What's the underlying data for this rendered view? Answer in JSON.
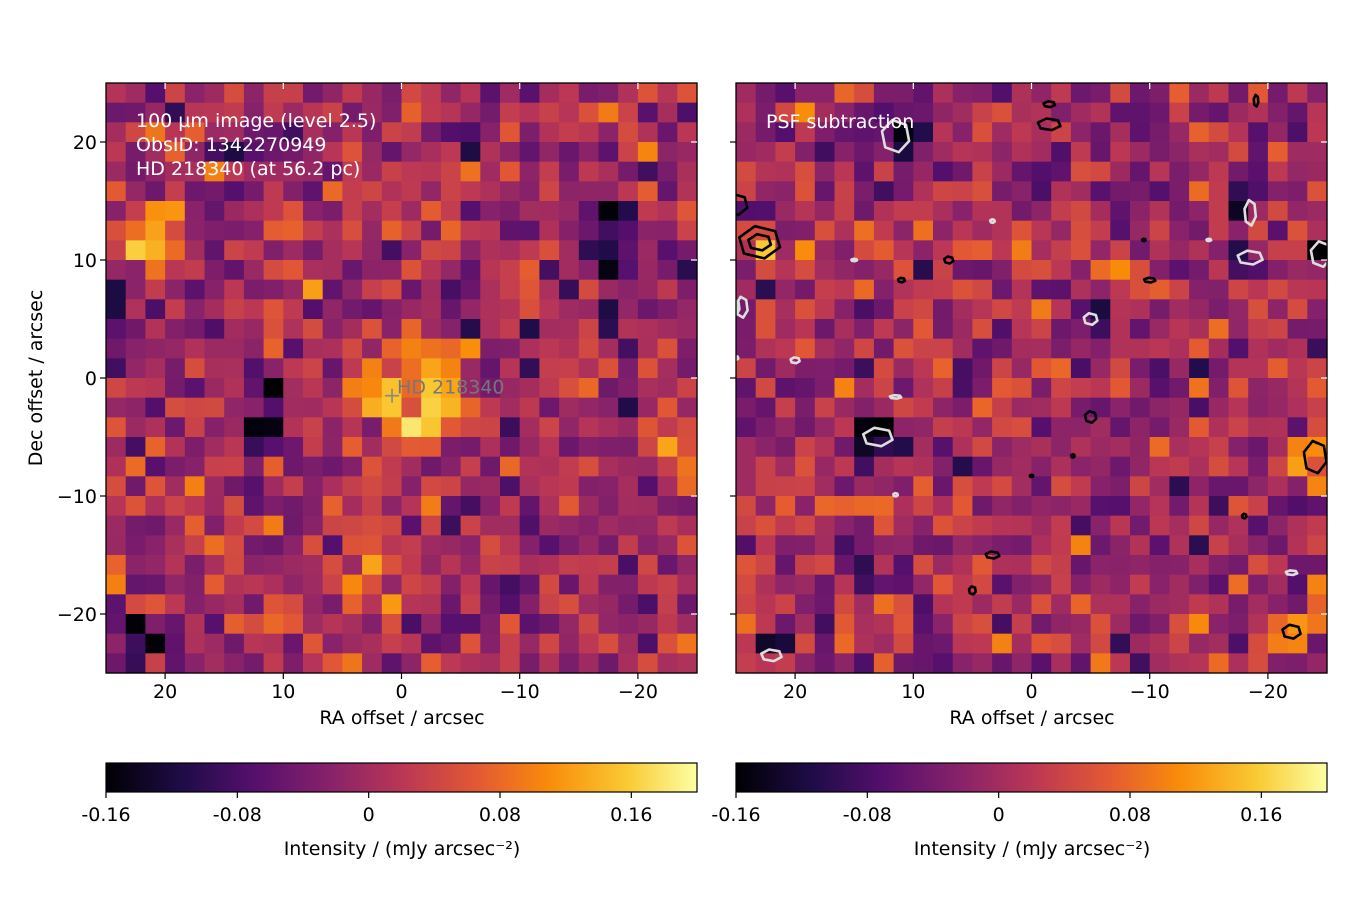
{
  "chart_data": [
    {
      "type": "heatmap",
      "title": "",
      "annotations": [
        "100 µm image (level 2.5)",
        "ObsID: 1342270949",
        "HD 218340 (at 56.2 pc)"
      ],
      "marker": {
        "label": "HD 218340",
        "x": 0.8,
        "y": -1.5,
        "symbol": "+"
      },
      "xlabel": "RA offset / arcsec",
      "ylabel": "Dec offset / arcsec",
      "xlim": [
        25,
        -25
      ],
      "ylim": [
        -25,
        25
      ],
      "xticks": [
        20,
        10,
        0,
        -10,
        -20
      ],
      "xtick_labels": [
        "20",
        "10",
        "0",
        "−10",
        "−20"
      ],
      "yticks": [
        20,
        10,
        0,
        -10,
        -20
      ],
      "ytick_labels": [
        "20",
        "10",
        "0",
        "−10",
        "−20"
      ],
      "colormap": "inferno",
      "grid_size": [
        30,
        30
      ],
      "colorbar": {
        "label": "Intensity / (mJy arcsec⁻²)",
        "range": [
          -0.16,
          0.2
        ],
        "ticks": [
          -0.16,
          -0.08,
          0,
          0.08,
          0.16
        ],
        "tick_labels": [
          "-0.16",
          "-0.08",
          "0",
          "0.08",
          "0.16"
        ]
      },
      "features": [
        {
          "x": 0,
          "y": 0,
          "sigma": 3.2,
          "amp": 0.13
        },
        {
          "x": -3,
          "y": -3,
          "sigma": 2.5,
          "amp": 0.07
        },
        {
          "x": 21,
          "y": 11.5,
          "sigma": 1.8,
          "amp": 0.15
        },
        {
          "x": -23,
          "y": -6,
          "sigma": 1.5,
          "amp": 0.11
        },
        {
          "x": 3,
          "y": -17,
          "sigma": 3,
          "amp": 0.06
        },
        {
          "x": 12,
          "y": -5,
          "sigma": 1.2,
          "amp": -0.16
        },
        {
          "x": 11,
          "y": 20,
          "sigma": 1.2,
          "amp": -0.14
        },
        {
          "x": -18,
          "y": 14,
          "sigma": 1.2,
          "amp": -0.12
        },
        {
          "x": -17.5,
          "y": 10,
          "sigma": 1.2,
          "amp": -0.16
        },
        {
          "x": -24.5,
          "y": 10,
          "sigma": 1.0,
          "amp": -0.13
        },
        {
          "x": 24,
          "y": 6,
          "sigma": 1.4,
          "amp": -0.11
        },
        {
          "x": 22,
          "y": -22,
          "sigma": 1.3,
          "amp": -0.15
        },
        {
          "x": 11,
          "y": -1.5,
          "sigma": 1.2,
          "amp": -0.12
        },
        {
          "x": -5,
          "y": 5,
          "sigma": 1.0,
          "amp": -0.12
        }
      ]
    },
    {
      "type": "heatmap",
      "title": "",
      "annotations": [
        "PSF subtraction"
      ],
      "xlabel": "RA offset / arcsec",
      "ylabel": "",
      "xlim": [
        25,
        -25
      ],
      "ylim": [
        -25,
        25
      ],
      "xticks": [
        20,
        10,
        0,
        -10,
        -20
      ],
      "xtick_labels": [
        "20",
        "10",
        "0",
        "−10",
        "−20"
      ],
      "yticks": [
        20,
        10,
        0,
        -10,
        -20
      ],
      "colormap": "inferno",
      "grid_size": [
        30,
        30
      ],
      "colorbar": {
        "label": "Intensity / (mJy arcsec⁻²)",
        "range": [
          -0.16,
          0.2
        ],
        "ticks": [
          -0.16,
          -0.08,
          0,
          0.08,
          0.16
        ],
        "tick_labels": [
          "-0.16",
          "-0.08",
          "0",
          "0.08",
          "0.16"
        ]
      },
      "features": [
        {
          "x": 23,
          "y": 11.5,
          "sigma": 1.3,
          "amp": 0.14
        },
        {
          "x": -24,
          "y": -6.5,
          "sigma": 1.3,
          "amp": 0.15
        },
        {
          "x": 11,
          "y": 20,
          "sigma": 1.2,
          "amp": -0.16
        },
        {
          "x": 13,
          "y": -5,
          "sigma": 1.2,
          "amp": -0.15
        },
        {
          "x": -18,
          "y": 15,
          "sigma": 1.1,
          "amp": -0.14
        },
        {
          "x": -18,
          "y": 10,
          "sigma": 1.1,
          "amp": -0.14
        },
        {
          "x": -24,
          "y": 10.5,
          "sigma": 1.0,
          "amp": -0.13
        },
        {
          "x": 22,
          "y": -23,
          "sigma": 1.0,
          "amp": -0.13
        },
        {
          "x": -22,
          "y": -16.5,
          "sigma": 1.0,
          "amp": -0.12
        },
        {
          "x": 1.5,
          "y": 21.5,
          "sigma": 1.0,
          "amp": 0.1
        },
        {
          "x": -22,
          "y": -21.5,
          "sigma": 1.0,
          "amp": 0.11
        },
        {
          "x": -5,
          "y": 5,
          "sigma": 1.0,
          "amp": -0.12
        }
      ],
      "contours": {
        "positive_color": "#000000",
        "negative_color": "#dddddd",
        "positive": [
          {
            "x": 23,
            "y": 11.5,
            "rx": 1.8,
            "ry": 1.4
          },
          {
            "x": 23,
            "y": 11.5,
            "rx": 1.0,
            "ry": 0.7
          },
          {
            "x": 25,
            "y": 14.7,
            "rx": 1.0,
            "ry": 0.9
          },
          {
            "x": -24,
            "y": -6.7,
            "rx": 1.0,
            "ry": 1.4
          },
          {
            "x": -1.5,
            "y": 21.5,
            "rx": 1.0,
            "ry": 0.5
          },
          {
            "x": -1.5,
            "y": 23.2,
            "rx": 0.5,
            "ry": 0.25
          },
          {
            "x": -19,
            "y": 23.5,
            "rx": 0.2,
            "ry": 0.5
          },
          {
            "x": 7,
            "y": 10,
            "rx": 0.4,
            "ry": 0.3
          },
          {
            "x": 11,
            "y": 8.3,
            "rx": 0.3,
            "ry": 0.2
          },
          {
            "x": -10,
            "y": 8.3,
            "rx": 0.5,
            "ry": 0.2
          },
          {
            "x": -9.5,
            "y": 11.7,
            "rx": 0.15,
            "ry": 0.1
          },
          {
            "x": -5,
            "y": -3.3,
            "rx": 0.5,
            "ry": 0.5
          },
          {
            "x": -3.5,
            "y": -6.6,
            "rx": 0.15,
            "ry": 0.15
          },
          {
            "x": 0,
            "y": -8.3,
            "rx": 0.15,
            "ry": 0.1
          },
          {
            "x": 3.3,
            "y": -15,
            "rx": 0.6,
            "ry": 0.3
          },
          {
            "x": 5,
            "y": -18,
            "rx": 0.3,
            "ry": 0.35
          },
          {
            "x": -18,
            "y": -11.7,
            "rx": 0.2,
            "ry": 0.2
          },
          {
            "x": -22,
            "y": -21.5,
            "rx": 0.8,
            "ry": 0.6
          }
        ],
        "negative": [
          {
            "x": 11.5,
            "y": 20.5,
            "rx": 1.2,
            "ry": 1.4
          },
          {
            "x": 13,
            "y": -5,
            "rx": 1.3,
            "ry": 0.8
          },
          {
            "x": -18.5,
            "y": 14,
            "rx": 0.5,
            "ry": 1.1
          },
          {
            "x": -18.5,
            "y": 10.2,
            "rx": 1.1,
            "ry": 0.6
          },
          {
            "x": -24.5,
            "y": 10.5,
            "rx": 0.9,
            "ry": 1.1
          },
          {
            "x": 24.5,
            "y": 6,
            "rx": 0.5,
            "ry": 0.9
          },
          {
            "x": 22,
            "y": -23.5,
            "rx": 0.9,
            "ry": 0.5
          },
          {
            "x": -5,
            "y": 5,
            "rx": 0.6,
            "ry": 0.5
          },
          {
            "x": 20,
            "y": 1.5,
            "rx": 0.4,
            "ry": 0.25
          },
          {
            "x": 11.5,
            "y": -1.6,
            "rx": 0.5,
            "ry": 0.15
          },
          {
            "x": 15,
            "y": 10,
            "rx": 0.25,
            "ry": 0.1
          },
          {
            "x": 3.3,
            "y": 13.3,
            "rx": 0.2,
            "ry": 0.15
          },
          {
            "x": 11.5,
            "y": -9.9,
            "rx": 0.2,
            "ry": 0.15
          },
          {
            "x": -22,
            "y": -16.5,
            "rx": 0.5,
            "ry": 0.2
          },
          {
            "x": -15,
            "y": 11.7,
            "rx": 0.2,
            "ry": 0.1
          },
          {
            "x": 25,
            "y": 1.7,
            "rx": 0.2,
            "ry": 0.15
          },
          {
            "x": 25,
            "y": 6,
            "rx": 0.3,
            "ry": 0.6
          }
        ]
      }
    }
  ]
}
